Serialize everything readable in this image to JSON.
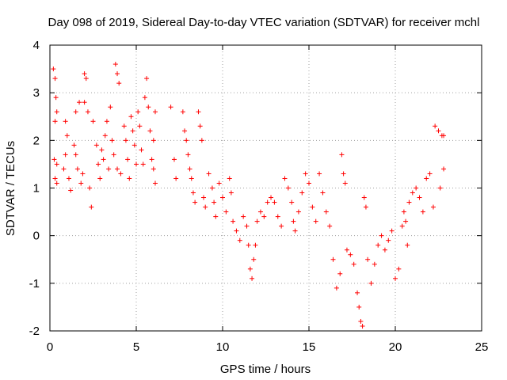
{
  "chart_data": {
    "type": "scatter",
    "title": "Day 098 of 2019, Sidereal Day-to-day VTEC variation (SDTVAR) for receiver mchl",
    "xlabel": "GPS time / hours",
    "ylabel": "SDTVAR / TECUs",
    "xlim": [
      0,
      25
    ],
    "ylim": [
      -2,
      4
    ],
    "xticks": [
      0,
      5,
      10,
      15,
      20,
      25
    ],
    "xtick_labels": [
      "0",
      "5",
      "10",
      "15",
      "20",
      "25"
    ],
    "yticks": [
      -2,
      -1,
      0,
      1,
      2,
      3,
      4
    ],
    "ytick_labels": [
      "-2",
      "-1",
      "0",
      "1",
      "2",
      "3",
      "4"
    ],
    "grid": true,
    "marker": "+",
    "color": "#ff0000",
    "series": [
      {
        "name": "SDTVAR",
        "points": [
          [
            0.2,
            3.5
          ],
          [
            0.3,
            3.3
          ],
          [
            0.35,
            2.9
          ],
          [
            0.4,
            2.6
          ],
          [
            0.3,
            2.4
          ],
          [
            0.25,
            1.6
          ],
          [
            0.4,
            1.5
          ],
          [
            0.3,
            1.2
          ],
          [
            0.4,
            1.1
          ],
          [
            0.8,
            1.4
          ],
          [
            0.9,
            1.7
          ],
          [
            1.0,
            2.1
          ],
          [
            0.9,
            2.4
          ],
          [
            1.1,
            1.2
          ],
          [
            1.2,
            0.95
          ],
          [
            1.4,
            1.9
          ],
          [
            1.5,
            1.7
          ],
          [
            1.6,
            1.4
          ],
          [
            1.5,
            2.6
          ],
          [
            1.7,
            2.8
          ],
          [
            1.8,
            1.1
          ],
          [
            1.9,
            1.3
          ],
          [
            2.0,
            3.4
          ],
          [
            2.1,
            3.3
          ],
          [
            2.0,
            2.8
          ],
          [
            2.2,
            2.6
          ],
          [
            2.3,
            1.0
          ],
          [
            2.4,
            0.6
          ],
          [
            2.5,
            2.4
          ],
          [
            2.7,
            1.9
          ],
          [
            2.8,
            1.5
          ],
          [
            2.9,
            1.2
          ],
          [
            3.0,
            1.8
          ],
          [
            3.1,
            1.6
          ],
          [
            3.2,
            2.1
          ],
          [
            3.3,
            2.4
          ],
          [
            3.4,
            1.4
          ],
          [
            3.5,
            2.7
          ],
          [
            3.6,
            2.0
          ],
          [
            3.7,
            1.7
          ],
          [
            3.8,
            3.6
          ],
          [
            3.9,
            3.4
          ],
          [
            4.0,
            3.2
          ],
          [
            3.9,
            1.4
          ],
          [
            4.1,
            1.3
          ],
          [
            4.3,
            2.3
          ],
          [
            4.4,
            2.0
          ],
          [
            4.5,
            1.6
          ],
          [
            4.6,
            1.2
          ],
          [
            4.7,
            2.5
          ],
          [
            4.8,
            2.2
          ],
          [
            4.9,
            1.9
          ],
          [
            5.0,
            1.5
          ],
          [
            5.1,
            2.6
          ],
          [
            5.2,
            2.3
          ],
          [
            5.3,
            1.8
          ],
          [
            5.4,
            1.5
          ],
          [
            5.5,
            2.9
          ],
          [
            5.6,
            3.3
          ],
          [
            5.7,
            2.7
          ],
          [
            5.8,
            2.2
          ],
          [
            5.9,
            1.6
          ],
          [
            6.0,
            2.0
          ],
          [
            6.1,
            2.6
          ],
          [
            6.1,
            1.1
          ],
          [
            6.0,
            1.4
          ],
          [
            7.0,
            2.7
          ],
          [
            7.2,
            1.6
          ],
          [
            7.3,
            1.2
          ],
          [
            7.7,
            2.6
          ],
          [
            7.8,
            2.2
          ],
          [
            7.9,
            2.0
          ],
          [
            8.0,
            1.7
          ],
          [
            8.1,
            1.4
          ],
          [
            8.2,
            1.2
          ],
          [
            8.3,
            0.9
          ],
          [
            8.4,
            0.7
          ],
          [
            8.6,
            2.6
          ],
          [
            8.7,
            2.3
          ],
          [
            8.8,
            2.0
          ],
          [
            8.9,
            0.8
          ],
          [
            9.0,
            0.6
          ],
          [
            9.2,
            1.3
          ],
          [
            9.4,
            1.0
          ],
          [
            9.5,
            0.7
          ],
          [
            9.6,
            0.4
          ],
          [
            9.8,
            1.1
          ],
          [
            10.0,
            0.8
          ],
          [
            10.2,
            0.5
          ],
          [
            10.4,
            1.2
          ],
          [
            10.5,
            0.9
          ],
          [
            10.6,
            0.3
          ],
          [
            10.8,
            0.1
          ],
          [
            11.0,
            -0.1
          ],
          [
            11.2,
            0.4
          ],
          [
            11.4,
            0.2
          ],
          [
            11.5,
            -0.2
          ],
          [
            11.6,
            -0.7
          ],
          [
            11.7,
            -0.9
          ],
          [
            11.8,
            -0.5
          ],
          [
            11.9,
            -0.2
          ],
          [
            12.0,
            0.3
          ],
          [
            12.2,
            0.5
          ],
          [
            12.4,
            0.4
          ],
          [
            12.6,
            0.7
          ],
          [
            12.8,
            0.8
          ],
          [
            13.0,
            0.7
          ],
          [
            13.2,
            0.4
          ],
          [
            13.4,
            0.2
          ],
          [
            13.6,
            1.2
          ],
          [
            13.8,
            1.0
          ],
          [
            14.0,
            0.7
          ],
          [
            14.1,
            0.3
          ],
          [
            14.2,
            0.1
          ],
          [
            14.4,
            0.5
          ],
          [
            14.6,
            0.9
          ],
          [
            14.8,
            1.3
          ],
          [
            15.0,
            1.1
          ],
          [
            15.2,
            0.6
          ],
          [
            15.4,
            0.3
          ],
          [
            15.6,
            1.3
          ],
          [
            15.8,
            0.9
          ],
          [
            16.0,
            0.5
          ],
          [
            16.2,
            0.2
          ],
          [
            16.4,
            -0.5
          ],
          [
            16.6,
            -1.1
          ],
          [
            16.8,
            -0.8
          ],
          [
            16.9,
            1.7
          ],
          [
            17.0,
            1.3
          ],
          [
            17.1,
            1.1
          ],
          [
            17.2,
            -0.3
          ],
          [
            17.4,
            -0.4
          ],
          [
            17.6,
            -0.6
          ],
          [
            17.8,
            -1.2
          ],
          [
            17.9,
            -1.5
          ],
          [
            18.0,
            -1.8
          ],
          [
            18.1,
            -1.9
          ],
          [
            18.2,
            0.8
          ],
          [
            18.3,
            0.6
          ],
          [
            18.4,
            -0.5
          ],
          [
            18.6,
            -1.0
          ],
          [
            18.8,
            -0.6
          ],
          [
            19.0,
            -0.2
          ],
          [
            19.2,
            0.0
          ],
          [
            19.4,
            -0.3
          ],
          [
            19.6,
            -0.1
          ],
          [
            19.8,
            0.1
          ],
          [
            20.0,
            -0.9
          ],
          [
            20.2,
            -0.7
          ],
          [
            20.4,
            0.2
          ],
          [
            20.5,
            0.5
          ],
          [
            20.6,
            0.3
          ],
          [
            20.7,
            -0.2
          ],
          [
            20.8,
            0.7
          ],
          [
            21.0,
            0.9
          ],
          [
            21.2,
            1.0
          ],
          [
            21.4,
            0.8
          ],
          [
            21.6,
            0.5
          ],
          [
            21.8,
            1.2
          ],
          [
            22.0,
            1.3
          ],
          [
            22.2,
            0.6
          ],
          [
            22.3,
            2.3
          ],
          [
            22.5,
            2.2
          ],
          [
            22.6,
            1.0
          ],
          [
            22.7,
            2.1
          ],
          [
            22.8,
            1.4
          ],
          [
            22.8,
            2.1
          ]
        ]
      }
    ]
  }
}
